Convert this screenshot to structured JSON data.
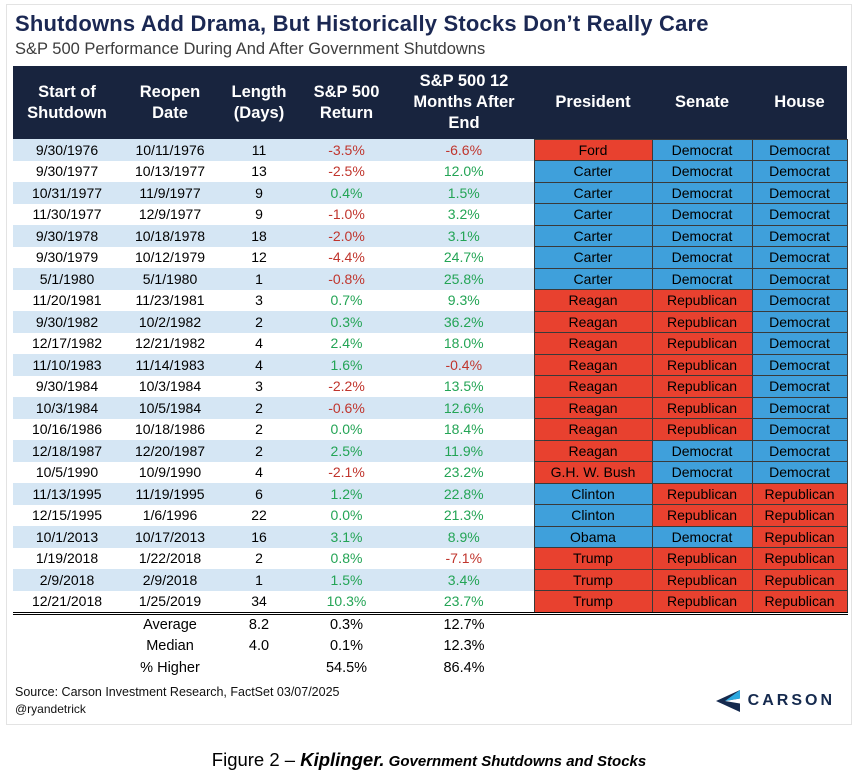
{
  "title": "Shutdowns Add Drama, But Historically Stocks Don’t Really Care",
  "subtitle": "S&P 500 Performance During And After Government Shutdowns",
  "colors": {
    "header_bg": "#18243E",
    "header_text": "#FFFFFF",
    "title_color": "#1B2853",
    "row_alt": "#D5E6F4",
    "democrat": "#3FA0DB",
    "republican": "#E8412F",
    "positive": "#23A455",
    "negative": "#C0352D",
    "brand_navy": "#152A4E",
    "brand_blue": "#2BA9E0"
  },
  "chart_data": {
    "type": "table",
    "title": "S&P 500 Performance During And After Government Shutdowns",
    "columns": [
      "Start of Shutdown",
      "Reopen Date",
      "Length (Days)",
      "S&P 500 Return",
      "S&P 500 12 Months After End",
      "President",
      "Senate",
      "House"
    ],
    "rows": [
      {
        "start": "9/30/1976",
        "reopen": "10/11/1976",
        "length": "11",
        "return": "-3.5%",
        "after": "-6.6%",
        "president": "Ford",
        "president_party": "rep",
        "senate": "Democrat",
        "senate_party": "dem",
        "house": "Democrat",
        "house_party": "dem"
      },
      {
        "start": "9/30/1977",
        "reopen": "10/13/1977",
        "length": "13",
        "return": "-2.5%",
        "after": "12.0%",
        "president": "Carter",
        "president_party": "dem",
        "senate": "Democrat",
        "senate_party": "dem",
        "house": "Democrat",
        "house_party": "dem"
      },
      {
        "start": "10/31/1977",
        "reopen": "11/9/1977",
        "length": "9",
        "return": "0.4%",
        "after": "1.5%",
        "president": "Carter",
        "president_party": "dem",
        "senate": "Democrat",
        "senate_party": "dem",
        "house": "Democrat",
        "house_party": "dem"
      },
      {
        "start": "11/30/1977",
        "reopen": "12/9/1977",
        "length": "9",
        "return": "-1.0%",
        "after": "3.2%",
        "president": "Carter",
        "president_party": "dem",
        "senate": "Democrat",
        "senate_party": "dem",
        "house": "Democrat",
        "house_party": "dem"
      },
      {
        "start": "9/30/1978",
        "reopen": "10/18/1978",
        "length": "18",
        "return": "-2.0%",
        "after": "3.1%",
        "president": "Carter",
        "president_party": "dem",
        "senate": "Democrat",
        "senate_party": "dem",
        "house": "Democrat",
        "house_party": "dem"
      },
      {
        "start": "9/30/1979",
        "reopen": "10/12/1979",
        "length": "12",
        "return": "-4.4%",
        "after": "24.7%",
        "president": "Carter",
        "president_party": "dem",
        "senate": "Democrat",
        "senate_party": "dem",
        "house": "Democrat",
        "house_party": "dem"
      },
      {
        "start": "5/1/1980",
        "reopen": "5/1/1980",
        "length": "1",
        "return": "-0.8%",
        "after": "25.8%",
        "president": "Carter",
        "president_party": "dem",
        "senate": "Democrat",
        "senate_party": "dem",
        "house": "Democrat",
        "house_party": "dem"
      },
      {
        "start": "11/20/1981",
        "reopen": "11/23/1981",
        "length": "3",
        "return": "0.7%",
        "after": "9.3%",
        "president": "Reagan",
        "president_party": "rep",
        "senate": "Republican",
        "senate_party": "rep",
        "house": "Democrat",
        "house_party": "dem"
      },
      {
        "start": "9/30/1982",
        "reopen": "10/2/1982",
        "length": "2",
        "return": "0.3%",
        "after": "36.2%",
        "president": "Reagan",
        "president_party": "rep",
        "senate": "Republican",
        "senate_party": "rep",
        "house": "Democrat",
        "house_party": "dem"
      },
      {
        "start": "12/17/1982",
        "reopen": "12/21/1982",
        "length": "4",
        "return": "2.4%",
        "after": "18.0%",
        "president": "Reagan",
        "president_party": "rep",
        "senate": "Republican",
        "senate_party": "rep",
        "house": "Democrat",
        "house_party": "dem"
      },
      {
        "start": "11/10/1983",
        "reopen": "11/14/1983",
        "length": "4",
        "return": "1.6%",
        "after": "-0.4%",
        "president": "Reagan",
        "president_party": "rep",
        "senate": "Republican",
        "senate_party": "rep",
        "house": "Democrat",
        "house_party": "dem"
      },
      {
        "start": "9/30/1984",
        "reopen": "10/3/1984",
        "length": "3",
        "return": "-2.2%",
        "after": "13.5%",
        "president": "Reagan",
        "president_party": "rep",
        "senate": "Republican",
        "senate_party": "rep",
        "house": "Democrat",
        "house_party": "dem"
      },
      {
        "start": "10/3/1984",
        "reopen": "10/5/1984",
        "length": "2",
        "return": "-0.6%",
        "after": "12.6%",
        "president": "Reagan",
        "president_party": "rep",
        "senate": "Republican",
        "senate_party": "rep",
        "house": "Democrat",
        "house_party": "dem"
      },
      {
        "start": "10/16/1986",
        "reopen": "10/18/1986",
        "length": "2",
        "return": "0.0%",
        "after": "18.4%",
        "president": "Reagan",
        "president_party": "rep",
        "senate": "Republican",
        "senate_party": "rep",
        "house": "Democrat",
        "house_party": "dem"
      },
      {
        "start": "12/18/1987",
        "reopen": "12/20/1987",
        "length": "2",
        "return": "2.5%",
        "after": "11.9%",
        "president": "Reagan",
        "president_party": "rep",
        "senate": "Democrat",
        "senate_party": "dem",
        "house": "Democrat",
        "house_party": "dem"
      },
      {
        "start": "10/5/1990",
        "reopen": "10/9/1990",
        "length": "4",
        "return": "-2.1%",
        "after": "23.2%",
        "president": "G.H. W. Bush",
        "president_party": "rep",
        "senate": "Democrat",
        "senate_party": "dem",
        "house": "Democrat",
        "house_party": "dem"
      },
      {
        "start": "11/13/1995",
        "reopen": "11/19/1995",
        "length": "6",
        "return": "1.2%",
        "after": "22.8%",
        "president": "Clinton",
        "president_party": "dem",
        "senate": "Republican",
        "senate_party": "rep",
        "house": "Republican",
        "house_party": "rep"
      },
      {
        "start": "12/15/1995",
        "reopen": "1/6/1996",
        "length": "22",
        "return": "0.0%",
        "after": "21.3%",
        "president": "Clinton",
        "president_party": "dem",
        "senate": "Republican",
        "senate_party": "rep",
        "house": "Republican",
        "house_party": "rep"
      },
      {
        "start": "10/1/2013",
        "reopen": "10/17/2013",
        "length": "16",
        "return": "3.1%",
        "after": "8.9%",
        "president": "Obama",
        "president_party": "dem",
        "senate": "Democrat",
        "senate_party": "dem",
        "house": "Republican",
        "house_party": "rep"
      },
      {
        "start": "1/19/2018",
        "reopen": "1/22/2018",
        "length": "2",
        "return": "0.8%",
        "after": "-7.1%",
        "president": "Trump",
        "president_party": "rep",
        "senate": "Republican",
        "senate_party": "rep",
        "house": "Republican",
        "house_party": "rep"
      },
      {
        "start": "2/9/2018",
        "reopen": "2/9/2018",
        "length": "1",
        "return": "1.5%",
        "after": "3.4%",
        "president": "Trump",
        "president_party": "rep",
        "senate": "Republican",
        "senate_party": "rep",
        "house": "Republican",
        "house_party": "rep"
      },
      {
        "start": "12/21/2018",
        "reopen": "1/25/2019",
        "length": "34",
        "return": "10.3%",
        "after": "23.7%",
        "president": "Trump",
        "president_party": "rep",
        "senate": "Republican",
        "senate_party": "rep",
        "house": "Republican",
        "house_party": "rep"
      }
    ],
    "summary": [
      {
        "label": "Average",
        "length": "8.2",
        "return": "0.3%",
        "after": "12.7%"
      },
      {
        "label": "Median",
        "length": "4.0",
        "return": "0.1%",
        "after": "12.3%"
      },
      {
        "label": "% Higher",
        "length": "",
        "return": "54.5%",
        "after": "86.4%"
      }
    ]
  },
  "footer": {
    "source": "Source: Carson Investment Research, FactSet 03/07/2025",
    "handle": "@ryandetrick",
    "brand": "CARSON"
  },
  "caption": {
    "figure": "Figure 2 – ",
    "source": "Kiplinger.",
    "text": " Government Shutdowns and Stocks"
  }
}
